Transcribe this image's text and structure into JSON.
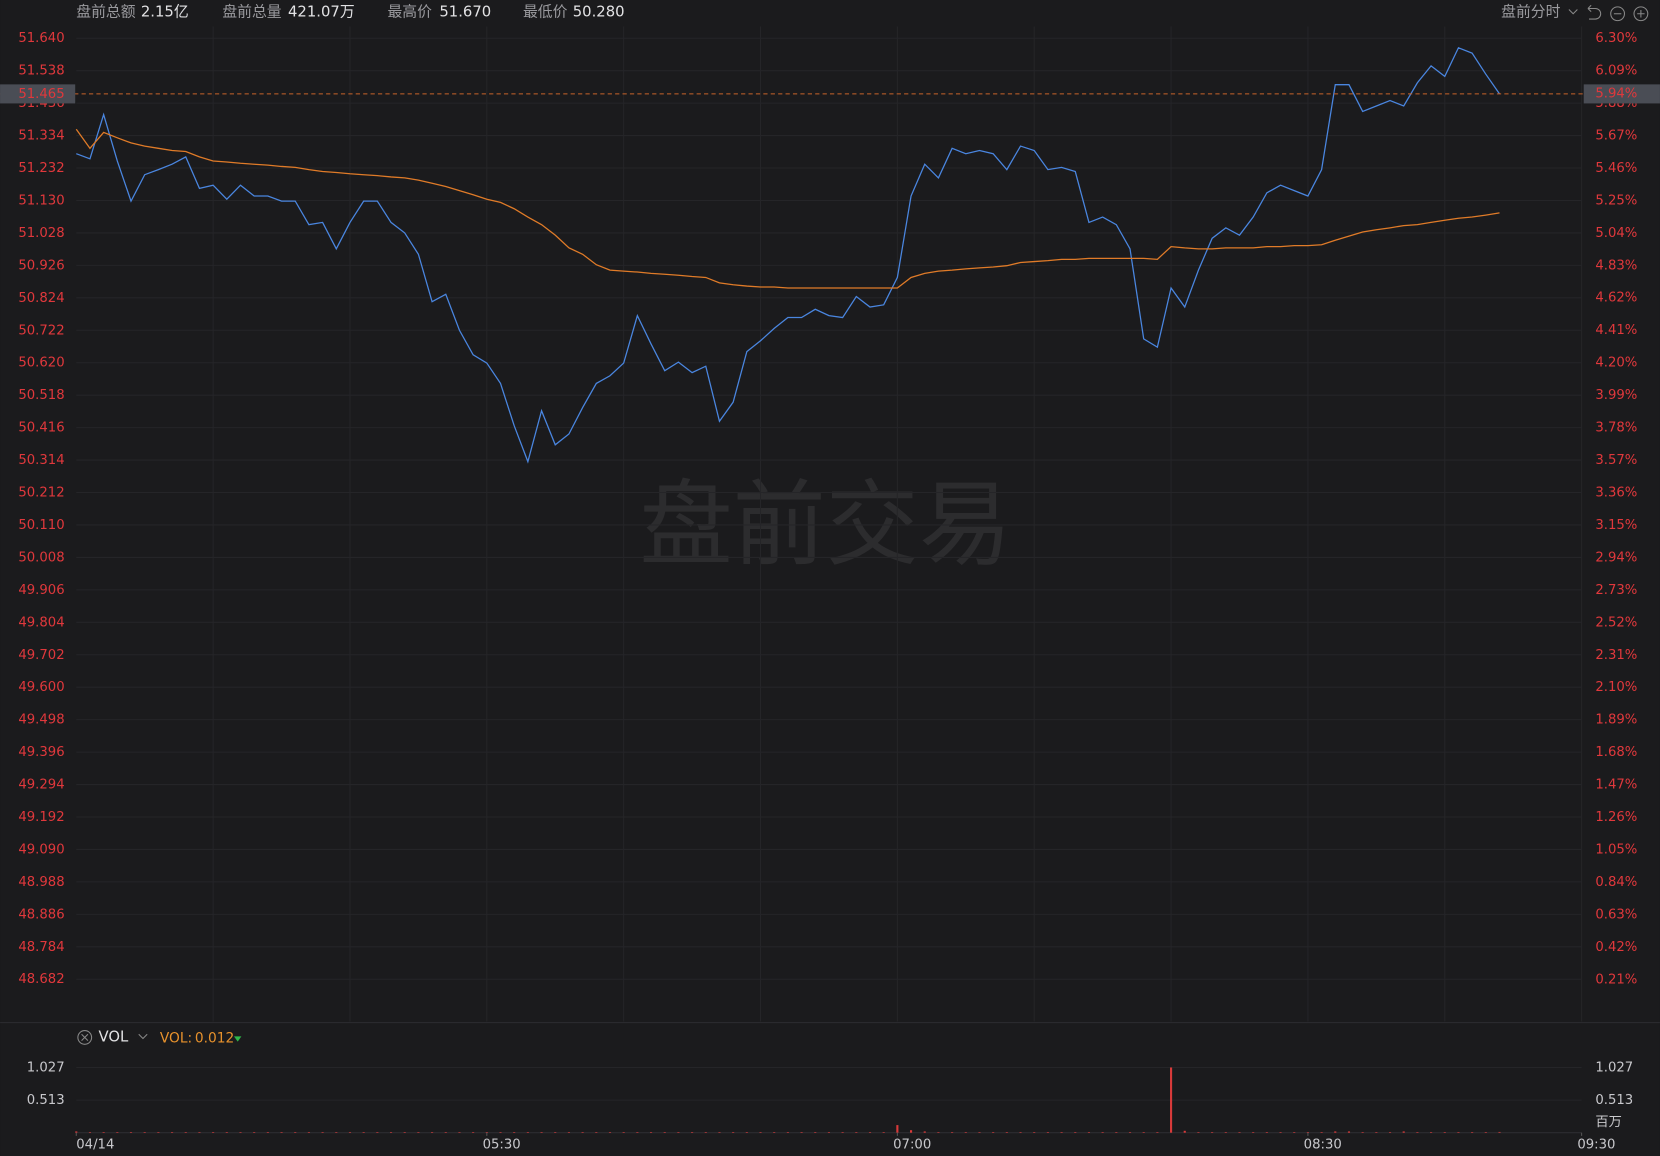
{
  "header": {
    "items": [
      {
        "label": "盘前总额",
        "value": "2.15亿"
      },
      {
        "label": "盘前总量",
        "value": "421.07万"
      },
      {
        "label": "最高价",
        "value": "51.670"
      },
      {
        "label": "最低价",
        "value": "50.280"
      }
    ],
    "mode": "盘前分时",
    "watermark": "盘前交易"
  },
  "chart_data": [
    {
      "type": "line",
      "x": [
        "04:00",
        "04:03",
        "04:06",
        "04:09",
        "04:12",
        "04:15",
        "04:18",
        "04:21",
        "04:24",
        "04:27",
        "04:30",
        "04:33",
        "04:36",
        "04:39",
        "04:42",
        "04:45",
        "04:48",
        "04:51",
        "04:54",
        "04:57",
        "05:00",
        "05:03",
        "05:06",
        "05:09",
        "05:12",
        "05:15",
        "05:18",
        "05:21",
        "05:24",
        "05:27",
        "05:30",
        "05:33",
        "05:36",
        "05:39",
        "05:42",
        "05:45",
        "05:48",
        "05:51",
        "05:54",
        "05:57",
        "06:00",
        "06:03",
        "06:06",
        "06:09",
        "06:12",
        "06:15",
        "06:18",
        "06:21",
        "06:24",
        "06:27",
        "06:30",
        "06:33",
        "06:36",
        "06:39",
        "06:42",
        "06:45",
        "06:48",
        "06:51",
        "06:54",
        "06:57",
        "07:00",
        "07:03",
        "07:06",
        "07:09",
        "07:12",
        "07:15",
        "07:18",
        "07:21",
        "07:24",
        "07:27",
        "07:30",
        "07:33",
        "07:36",
        "07:39",
        "07:42",
        "07:45",
        "07:48",
        "07:51",
        "07:54",
        "07:57",
        "08:00",
        "08:03",
        "08:06",
        "08:09",
        "08:12",
        "08:15",
        "08:18",
        "08:21",
        "08:24",
        "08:27",
        "08:30",
        "08:33",
        "08:36",
        "08:39",
        "08:42",
        "08:45",
        "08:48",
        "08:51",
        "08:54",
        "08:57",
        "09:00",
        "09:03",
        "09:06",
        "09:09",
        "09:12"
      ],
      "series": [
        {
          "color": "#4a86e0",
          "values": [
            51.277,
            51.261,
            51.4,
            51.254,
            51.128,
            51.211,
            51.227,
            51.244,
            51.267,
            51.168,
            51.178,
            51.134,
            51.178,
            51.144,
            51.144,
            51.128,
            51.128,
            51.054,
            51.061,
            50.978,
            51.061,
            51.128,
            51.128,
            51.061,
            51.028,
            50.961,
            50.812,
            50.835,
            50.722,
            50.645,
            50.619,
            50.555,
            50.422,
            50.309,
            50.469,
            50.362,
            50.396,
            50.479,
            50.555,
            50.579,
            50.619,
            50.768,
            50.679,
            50.595,
            50.622,
            50.589,
            50.609,
            50.436,
            50.496,
            50.655,
            50.689,
            50.728,
            50.762,
            50.762,
            50.788,
            50.768,
            50.762,
            50.828,
            50.795,
            50.802,
            50.888,
            51.144,
            51.244,
            51.201,
            51.294,
            51.277,
            51.287,
            51.277,
            51.227,
            51.301,
            51.287,
            51.227,
            51.234,
            51.221,
            51.061,
            51.078,
            51.054,
            50.978,
            50.695,
            50.669,
            50.855,
            50.795,
            50.911,
            51.011,
            51.044,
            51.021,
            51.078,
            51.154,
            51.178,
            51.161,
            51.144,
            51.227,
            51.494,
            51.494,
            51.41,
            51.427,
            51.444,
            51.427,
            51.5,
            51.553,
            51.52,
            51.61,
            51.593,
            51.527,
            51.465
          ]
        },
        {
          "color": "#e07b28",
          "values": [
            51.354,
            51.294,
            51.344,
            51.327,
            51.311,
            51.301,
            51.294,
            51.287,
            51.284,
            51.267,
            51.254,
            51.251,
            51.247,
            51.244,
            51.241,
            51.237,
            51.234,
            51.227,
            51.221,
            51.218,
            51.214,
            51.211,
            51.208,
            51.204,
            51.201,
            51.194,
            51.184,
            51.174,
            51.161,
            51.148,
            51.134,
            51.124,
            51.104,
            51.078,
            51.054,
            51.021,
            50.981,
            50.961,
            50.928,
            50.911,
            50.908,
            50.905,
            50.901,
            50.898,
            50.895,
            50.891,
            50.888,
            50.871,
            50.865,
            50.861,
            50.858,
            50.858,
            50.855,
            50.855,
            50.855,
            50.855,
            50.855,
            50.855,
            50.855,
            50.855,
            50.855,
            50.888,
            50.901,
            50.908,
            50.911,
            50.915,
            50.918,
            50.921,
            50.925,
            50.935,
            50.938,
            50.941,
            50.945,
            50.945,
            50.948,
            50.948,
            50.948,
            50.948,
            50.948,
            50.945,
            50.985,
            50.981,
            50.978,
            50.978,
            50.981,
            50.981,
            50.981,
            50.985,
            50.985,
            50.988,
            50.988,
            50.991,
            51.005,
            51.018,
            51.031,
            51.038,
            51.044,
            51.051,
            51.054,
            51.061,
            51.068,
            51.074,
            51.078,
            51.084,
            51.091
          ]
        }
      ],
      "last_change": {
        "value": 5.94,
        "label": "5.94%"
      },
      "last_line_color": "#c8632a",
      "ylim": [
        48.549,
        51.677
      ],
      "yticks": [
        {
          "value": 51.64,
          "label": "51.640"
        },
        51.538,
        51.436,
        51.334,
        51.232,
        {
          "value": 51.13,
          "label": "51.130"
        },
        51.028,
        50.926,
        50.824,
        50.722,
        {
          "value": 50.62,
          "label": "50.620"
        },
        50.518,
        50.416,
        50.314,
        50.212,
        {
          "value": 50.11,
          "label": "50.110"
        },
        50.008,
        49.906,
        49.804,
        49.702,
        {
          "value": 49.6,
          "label": "49.600"
        },
        49.498,
        49.396,
        49.294,
        49.192,
        {
          "value": 49.09,
          "label": "49.090"
        },
        48.988,
        48.886,
        48.784,
        48.682
      ],
      "y2lim": [
        -0.063,
        6.375
      ],
      "y2ticks": [
        {
          "value": 6.3,
          "label": "6.30%"
        },
        {
          "value": 6.09,
          "label": "6.09%"
        },
        {
          "value": 5.88,
          "label": "5.88%"
        },
        {
          "value": 5.67,
          "label": "5.67%"
        },
        {
          "value": 5.46,
          "label": "5.46%"
        },
        {
          "value": 5.25,
          "label": "5.25%"
        },
        {
          "value": 5.04,
          "label": "5.04%"
        },
        {
          "value": 4.83,
          "label": "4.83%"
        },
        {
          "value": 4.62,
          "label": "4.62%"
        },
        {
          "value": 4.41,
          "label": "4.41%"
        },
        {
          "value": 4.2,
          "label": "4.20%"
        },
        {
          "value": 3.99,
          "label": "3.99%"
        },
        {
          "value": 3.78,
          "label": "3.78%"
        },
        {
          "value": 3.57,
          "label": "3.57%"
        },
        {
          "value": 3.36,
          "label": "3.36%"
        },
        {
          "value": 3.15,
          "label": "3.15%"
        },
        {
          "value": 2.94,
          "label": "2.94%"
        },
        {
          "value": 2.73,
          "label": "2.73%"
        },
        {
          "value": 2.52,
          "label": "2.52%"
        },
        {
          "value": 2.31,
          "label": "2.31%"
        },
        {
          "value": 2.1,
          "label": "2.10%"
        },
        {
          "value": 1.89,
          "label": "1.89%"
        },
        {
          "value": 1.68,
          "label": "1.68%"
        },
        {
          "value": 1.47,
          "label": "1.47%"
        },
        {
          "value": 1.26,
          "label": "1.26%"
        },
        {
          "value": 1.05,
          "label": "1.05%"
        },
        {
          "value": 0.84,
          "label": "0.84%"
        },
        {
          "value": 0.63,
          "label": "0.63%"
        },
        {
          "value": 0.42,
          "label": "0.42%"
        },
        {
          "value": 0.21,
          "label": "0.21%"
        }
      ],
      "grid": true,
      "x_grid_step_minutes": 30
    },
    {
      "type": "bar",
      "indicator": "VOL",
      "legend_label": "VOL:",
      "unit": "百万",
      "color": "#d83a3a",
      "x": [
        "04:00",
        "04:03",
        "04:06",
        "04:09",
        "04:12",
        "04:15",
        "04:18",
        "04:21",
        "04:24",
        "04:27",
        "04:30",
        "04:33",
        "04:36",
        "04:39",
        "04:42",
        "04:45",
        "04:48",
        "04:51",
        "04:54",
        "04:57",
        "05:00",
        "05:03",
        "05:06",
        "05:09",
        "05:12",
        "05:15",
        "05:18",
        "05:21",
        "05:24",
        "05:27",
        "05:30",
        "05:33",
        "05:36",
        "05:39",
        "05:42",
        "05:45",
        "05:48",
        "05:51",
        "05:54",
        "05:57",
        "06:00",
        "06:03",
        "06:06",
        "06:09",
        "06:12",
        "06:15",
        "06:18",
        "06:21",
        "06:24",
        "06:27",
        "06:30",
        "06:33",
        "06:36",
        "06:39",
        "06:42",
        "06:45",
        "06:48",
        "06:51",
        "06:54",
        "06:57",
        "07:00",
        "07:03",
        "07:06",
        "07:09",
        "07:12",
        "07:15",
        "07:18",
        "07:21",
        "07:24",
        "07:27",
        "07:30",
        "07:33",
        "07:36",
        "07:39",
        "07:42",
        "07:45",
        "07:48",
        "07:51",
        "07:54",
        "07:57",
        "08:00",
        "08:03",
        "08:06",
        "08:09",
        "08:12",
        "08:15",
        "08:18",
        "08:21",
        "08:24",
        "08:27",
        "08:30",
        "08:33",
        "08:36",
        "08:39",
        "08:42",
        "08:45",
        "08:48",
        "08:51",
        "08:54",
        "08:57",
        "09:00",
        "09:03",
        "09:06",
        "09:09",
        "09:12"
      ],
      "values": [
        0.02,
        0.01,
        0.01,
        0.01,
        0.01,
        0.01,
        0.01,
        0.01,
        0.01,
        0.01,
        0.01,
        0.01,
        0.01,
        0.01,
        0.01,
        0.01,
        0.01,
        0.01,
        0.01,
        0.01,
        0.01,
        0.01,
        0.01,
        0.01,
        0.01,
        0.01,
        0.01,
        0.01,
        0.01,
        0.01,
        0.01,
        0.01,
        0.01,
        0.01,
        0.01,
        0.01,
        0.01,
        0.01,
        0.01,
        0.01,
        0.01,
        0.01,
        0.01,
        0.01,
        0.01,
        0.01,
        0.01,
        0.01,
        0.01,
        0.01,
        0.01,
        0.01,
        0.01,
        0.01,
        0.01,
        0.01,
        0.01,
        0.01,
        0.01,
        0.01,
        0.12,
        0.04,
        0.02,
        0.01,
        0.01,
        0.01,
        0.01,
        0.01,
        0.01,
        0.01,
        0.01,
        0.01,
        0.01,
        0.01,
        0.01,
        0.01,
        0.01,
        0.01,
        0.01,
        0.01,
        1.027,
        0.03,
        0.01,
        0.01,
        0.01,
        0.01,
        0.01,
        0.01,
        0.01,
        0.01,
        0.01,
        0.01,
        0.02,
        0.02,
        0.01,
        0.01,
        0.01,
        0.02,
        0.01,
        0.01,
        0.01,
        0.01,
        0.01,
        0.01,
        0.012
      ],
      "ylim": [
        0,
        1.2
      ],
      "yticks": [
        0.513,
        1.027
      ],
      "xlim": [
        "04:00",
        "09:30"
      ],
      "xticks": [
        {
          "value": "04:00",
          "label": "04/14"
        },
        "05:30",
        "07:00",
        "08:30",
        "09:30"
      ]
    }
  ]
}
